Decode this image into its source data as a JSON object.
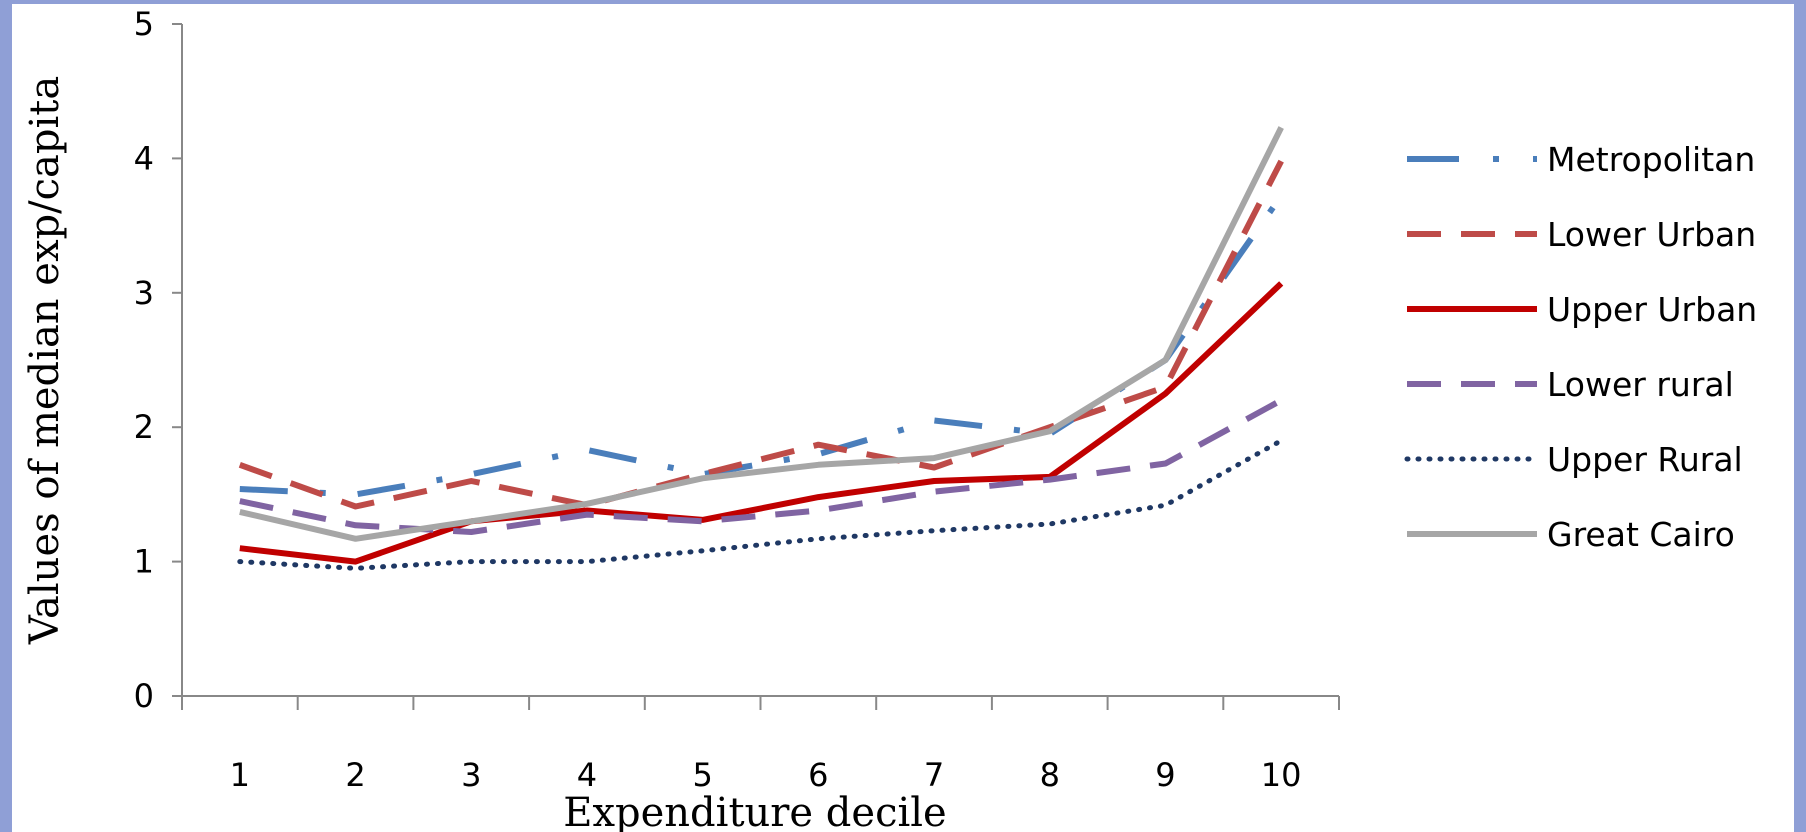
{
  "chart_data": {
    "type": "line",
    "xlabel": "Expenditure decile",
    "ylabel": "Values of median exp/capita",
    "categories": [
      "1",
      "2",
      "3",
      "4",
      "5",
      "6",
      "7",
      "8",
      "9",
      "10"
    ],
    "ylim": [
      0,
      5
    ],
    "yticks": [
      "0",
      "1",
      "2",
      "3",
      "4",
      "5"
    ],
    "grid": false,
    "legend_position": "right",
    "series": [
      {
        "name": "Metropolitan",
        "color": "#4a7ebb",
        "dash": "dashdot",
        "values": [
          1.54,
          1.5,
          1.65,
          1.83,
          1.65,
          1.8,
          2.05,
          1.95,
          2.5,
          3.72
        ]
      },
      {
        "name": "Lower Urban",
        "color": "#be4b48",
        "dash": "dash",
        "values": [
          1.72,
          1.41,
          1.6,
          1.42,
          1.65,
          1.87,
          1.7,
          2.0,
          2.3,
          3.98
        ]
      },
      {
        "name": "Upper Urban",
        "color": "#c00000",
        "dash": "solid",
        "values": [
          1.1,
          1.0,
          1.3,
          1.38,
          1.31,
          1.48,
          1.6,
          1.63,
          2.25,
          3.07
        ]
      },
      {
        "name": "Lower rural",
        "color": "#8064a2",
        "dash": "dash",
        "values": [
          1.45,
          1.27,
          1.22,
          1.35,
          1.3,
          1.38,
          1.52,
          1.61,
          1.73,
          2.2
        ]
      },
      {
        "name": "Upper Rural",
        "color": "#1f3864",
        "dash": "dot",
        "values": [
          1.0,
          0.95,
          1.0,
          1.0,
          1.08,
          1.17,
          1.23,
          1.28,
          1.42,
          1.9
        ]
      },
      {
        "name": "Great Cairo",
        "color": "#a6a6a6",
        "dash": "solid",
        "values": [
          1.37,
          1.17,
          1.3,
          1.43,
          1.62,
          1.72,
          1.77,
          1.97,
          2.5,
          4.23
        ]
      }
    ]
  }
}
